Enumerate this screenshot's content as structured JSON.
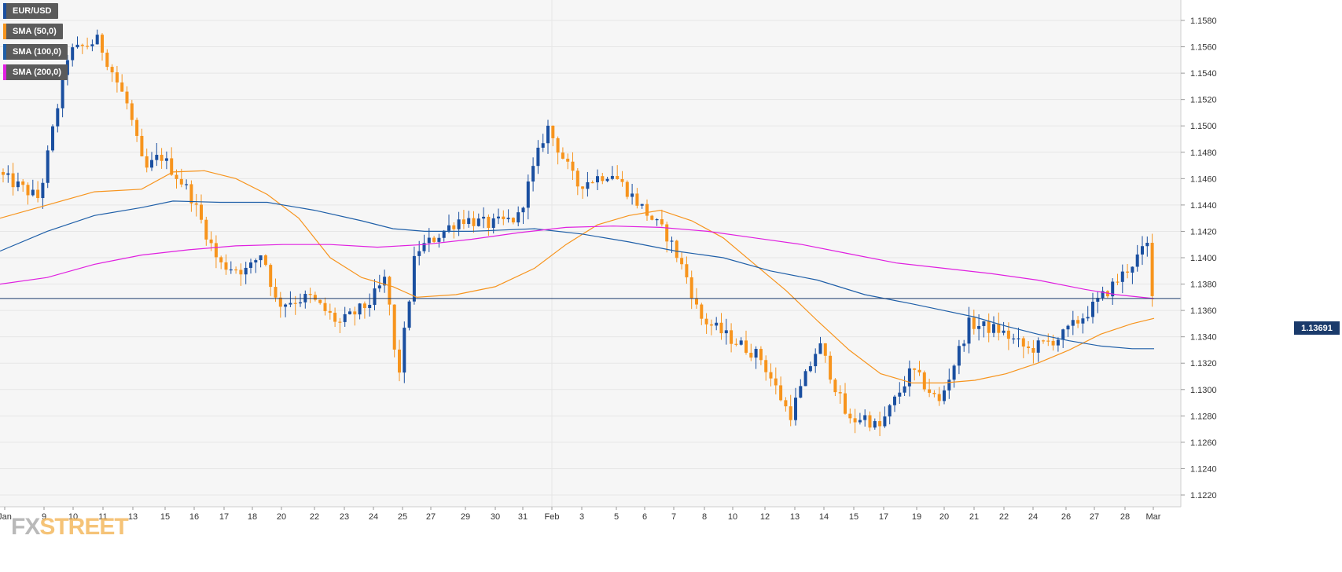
{
  "watermark": {
    "part1": "FX",
    "part2": "STREET"
  },
  "legend": [
    {
      "label": "EUR/USD",
      "color": "#1a4fa0"
    },
    {
      "label": "SMA (50,0)",
      "color": "#f7941d"
    },
    {
      "label": "SMA (100,0)",
      "color": "#1f5fa8"
    },
    {
      "label": "SMA (200,0)",
      "color": "#e020e0"
    }
  ],
  "current_price": {
    "label": "1.13691",
    "value": 1.13691,
    "line_color": "#1a3a6b"
  },
  "colors": {
    "bull": "#1a4fa0",
    "bear": "#f7941d",
    "sma50": "#f7941d",
    "sma100": "#1f5fa8",
    "sma200": "#e020e0",
    "grid": "#e6e6e6",
    "plot_bg": "#f6f6f6",
    "axis_text": "#333333"
  },
  "chart_data": {
    "type": "candlestick",
    "symbol": "EUR/USD",
    "timeframe": "4H",
    "y_ticks": [
      "1.1580",
      "1.1560",
      "1.1540",
      "1.1520",
      "1.1500",
      "1.1480",
      "1.1460",
      "1.1440",
      "1.1420",
      "1.1400",
      "1.1380",
      "1.1360",
      "1.1340",
      "1.1320",
      "1.1300",
      "1.1280",
      "1.1260",
      "1.1240",
      "1.1220"
    ],
    "ylim": [
      1.121,
      1.1595
    ],
    "grid": true,
    "x_labels": [
      "Jan",
      "9",
      "10",
      "11",
      "13",
      "15",
      "16",
      "17",
      "18",
      "20",
      "22",
      "23",
      "24",
      "25",
      "27",
      "29",
      "30",
      "31",
      "Feb",
      "3",
      "5",
      "6",
      "7",
      "8",
      "10",
      "12",
      "13",
      "14",
      "15",
      "17",
      "19",
      "20",
      "21",
      "22",
      "24",
      "26",
      "27",
      "28",
      "Mar"
    ],
    "anchors": [
      {
        "date": "Jan 1",
        "price": 1.1465
      },
      {
        "date": "Jan 8",
        "price": 1.1445
      },
      {
        "date": "Jan 9",
        "price": 1.1555
      },
      {
        "date": "Jan 10",
        "price": 1.1565
      },
      {
        "date": "Jan 11",
        "price": 1.1515
      },
      {
        "date": "Jan 13",
        "price": 1.1465
      },
      {
        "date": "Jan 14",
        "price": 1.1478
      },
      {
        "date": "Jan 15",
        "price": 1.145
      },
      {
        "date": "Jan 16",
        "price": 1.1395
      },
      {
        "date": "Jan 17",
        "price": 1.139
      },
      {
        "date": "Jan 18",
        "price": 1.1405
      },
      {
        "date": "Jan 19",
        "price": 1.1365
      },
      {
        "date": "Jan 20",
        "price": 1.137
      },
      {
        "date": "Jan 22",
        "price": 1.135
      },
      {
        "date": "Jan 23",
        "price": 1.1365
      },
      {
        "date": "Jan 24",
        "price": 1.1385
      },
      {
        "date": "Jan 25",
        "price": 1.1305
      },
      {
        "date": "Jan 26",
        "price": 1.1405
      },
      {
        "date": "Jan 27",
        "price": 1.141
      },
      {
        "date": "Jan 28",
        "price": 1.143
      },
      {
        "date": "Jan 29",
        "price": 1.1425
      },
      {
        "date": "Jan 30",
        "price": 1.143
      },
      {
        "date": "Jan 31",
        "price": 1.15
      },
      {
        "date": "Feb 1",
        "price": 1.1455
      },
      {
        "date": "Feb 3",
        "price": 1.1465
      },
      {
        "date": "Feb 4",
        "price": 1.144
      },
      {
        "date": "Feb 5",
        "price": 1.1415
      },
      {
        "date": "Feb 6",
        "price": 1.1385
      },
      {
        "date": "Feb 7",
        "price": 1.1355
      },
      {
        "date": "Feb 8",
        "price": 1.134
      },
      {
        "date": "Feb 10",
        "price": 1.1325
      },
      {
        "date": "Feb 12",
        "price": 1.128
      },
      {
        "date": "Feb 13",
        "price": 1.1335
      },
      {
        "date": "Feb 14",
        "price": 1.1275
      },
      {
        "date": "Feb 15",
        "price": 1.128
      },
      {
        "date": "Feb 16",
        "price": 1.127
      },
      {
        "date": "Feb 17",
        "price": 1.1315
      },
      {
        "date": "Feb 19",
        "price": 1.129
      },
      {
        "date": "Feb 20",
        "price": 1.135
      },
      {
        "date": "Feb 21",
        "price": 1.1345
      },
      {
        "date": "Feb 22",
        "price": 1.133
      },
      {
        "date": "Feb 24",
        "price": 1.134
      },
      {
        "date": "Feb 26",
        "price": 1.136
      },
      {
        "date": "Feb 27",
        "price": 1.1385
      },
      {
        "date": "Feb 28",
        "price": 1.141
      },
      {
        "date": "Mar 1",
        "price": 1.1369
      }
    ],
    "series": [
      {
        "name": "SMA (50,0)",
        "points": [
          [
            0,
            1.143
          ],
          [
            60,
            1.144
          ],
          [
            120,
            1.145
          ],
          [
            180,
            1.1452
          ],
          [
            220,
            1.1465
          ],
          [
            260,
            1.1466
          ],
          [
            300,
            1.146
          ],
          [
            340,
            1.1448
          ],
          [
            380,
            1.143
          ],
          [
            420,
            1.14
          ],
          [
            460,
            1.1385
          ],
          [
            500,
            1.1378
          ],
          [
            530,
            1.137
          ],
          [
            580,
            1.1372
          ],
          [
            630,
            1.1378
          ],
          [
            680,
            1.1392
          ],
          [
            720,
            1.141
          ],
          [
            760,
            1.1425
          ],
          [
            800,
            1.1432
          ],
          [
            840,
            1.1436
          ],
          [
            880,
            1.1428
          ],
          [
            920,
            1.1415
          ],
          [
            960,
            1.1395
          ],
          [
            1000,
            1.1375
          ],
          [
            1040,
            1.1352
          ],
          [
            1080,
            1.133
          ],
          [
            1120,
            1.1312
          ],
          [
            1160,
            1.1305
          ],
          [
            1200,
            1.1305
          ],
          [
            1240,
            1.1307
          ],
          [
            1280,
            1.1312
          ],
          [
            1320,
            1.132
          ],
          [
            1360,
            1.133
          ],
          [
            1400,
            1.1342
          ],
          [
            1440,
            1.135
          ],
          [
            1468,
            1.1354
          ]
        ]
      },
      {
        "name": "SMA (100,0)",
        "points": [
          [
            0,
            1.1405
          ],
          [
            60,
            1.142
          ],
          [
            120,
            1.1432
          ],
          [
            180,
            1.1438
          ],
          [
            220,
            1.1443
          ],
          [
            280,
            1.1442
          ],
          [
            340,
            1.1442
          ],
          [
            400,
            1.1436
          ],
          [
            460,
            1.1428
          ],
          [
            500,
            1.1422
          ],
          [
            540,
            1.142
          ],
          [
            600,
            1.142
          ],
          [
            680,
            1.1422
          ],
          [
            740,
            1.1418
          ],
          [
            800,
            1.1412
          ],
          [
            860,
            1.1405
          ],
          [
            920,
            1.14
          ],
          [
            980,
            1.139
          ],
          [
            1040,
            1.1383
          ],
          [
            1100,
            1.1372
          ],
          [
            1160,
            1.1365
          ],
          [
            1200,
            1.136
          ],
          [
            1240,
            1.1355
          ],
          [
            1280,
            1.1348
          ],
          [
            1320,
            1.1342
          ],
          [
            1360,
            1.1337
          ],
          [
            1400,
            1.1333
          ],
          [
            1440,
            1.1331
          ],
          [
            1468,
            1.1331
          ]
        ]
      },
      {
        "name": "SMA (200,0)",
        "points": [
          [
            0,
            1.138
          ],
          [
            60,
            1.1385
          ],
          [
            120,
            1.1395
          ],
          [
            180,
            1.1402
          ],
          [
            240,
            1.1406
          ],
          [
            300,
            1.1409
          ],
          [
            360,
            1.141
          ],
          [
            420,
            1.141
          ],
          [
            480,
            1.1408
          ],
          [
            540,
            1.141
          ],
          [
            600,
            1.1414
          ],
          [
            660,
            1.1419
          ],
          [
            720,
            1.1423
          ],
          [
            780,
            1.1424
          ],
          [
            840,
            1.1423
          ],
          [
            900,
            1.142
          ],
          [
            960,
            1.1415
          ],
          [
            1020,
            1.141
          ],
          [
            1080,
            1.1403
          ],
          [
            1140,
            1.1396
          ],
          [
            1200,
            1.1392
          ],
          [
            1260,
            1.1388
          ],
          [
            1320,
            1.1383
          ],
          [
            1380,
            1.1376
          ],
          [
            1420,
            1.1372
          ],
          [
            1468,
            1.1369
          ]
        ]
      }
    ]
  }
}
